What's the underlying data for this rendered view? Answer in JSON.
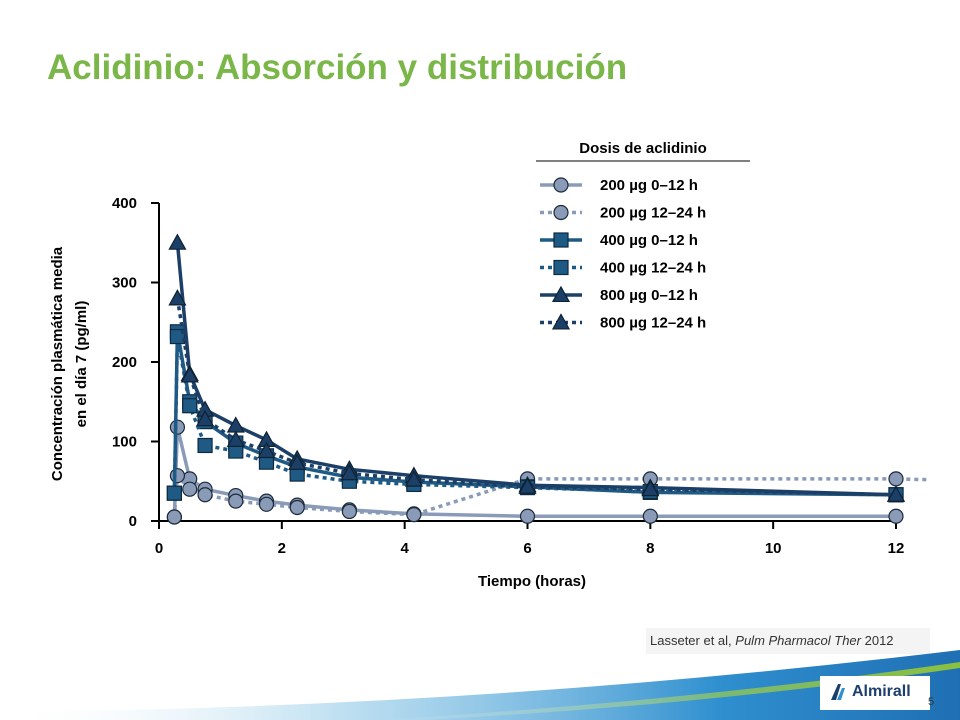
{
  "slide": {
    "title": "Aclidinio: Absorción y distribución",
    "citation_authors": "Lasseter et al, ",
    "citation_journal": "Pulm Pharmacol Ther",
    "citation_year": " 2012",
    "page_number": "5",
    "logo_text": "Almirall"
  },
  "colors": {
    "title": "#7ab648",
    "light_series": "#8a9bb8",
    "mid_series": "#1f5a85",
    "dark_series": "#1b3f66"
  },
  "chart_data": {
    "type": "line",
    "xlabel": "Tiempo (horas)",
    "ylabel_line1": "Concentración plasmática media",
    "ylabel_line2": "en el día 7 (pg/ml)",
    "xlim": [
      0,
      12
    ],
    "ylim": [
      0,
      400
    ],
    "x_ticks": [
      "0",
      "2",
      "4",
      "6",
      "8",
      "10",
      "12"
    ],
    "y_ticks": [
      "0",
      "100",
      "200",
      "300",
      "400"
    ],
    "legend_title": "Dosis de aclidinio",
    "legend_position": "top-right",
    "grid": false,
    "series": [
      {
        "name": "200 µg 0–12 h",
        "marker": "circle",
        "line": "solid",
        "color": "#8a9bb8",
        "x": [
          0.25,
          0.3,
          0.5,
          0.75,
          1.25,
          1.75,
          2.25,
          3.1,
          4.15,
          6.0,
          8.0,
          12.0
        ],
        "y": [
          5,
          118,
          53,
          40,
          32,
          25,
          20,
          14,
          9,
          6,
          6,
          6
        ]
      },
      {
        "name": "200 µg 12–24 h",
        "marker": "circle",
        "line": "dotted",
        "color": "#8a9bb8",
        "x": [
          0.25,
          0.3,
          0.5,
          0.75,
          1.25,
          1.75,
          2.25,
          3.1,
          4.15,
          6.0,
          8.0,
          12.0,
          12.5
        ],
        "y": [
          5,
          57,
          40,
          33,
          25,
          21,
          17,
          12,
          8,
          53,
          53,
          53,
          52
        ]
      },
      {
        "name": "400 µg 0–12 h",
        "marker": "square",
        "line": "solid",
        "color": "#1f5a85",
        "x": [
          0.25,
          0.3,
          0.5,
          0.75,
          1.25,
          1.75,
          2.25,
          3.1,
          4.15,
          6.0,
          8.0,
          12.0
        ],
        "y": [
          35,
          238,
          150,
          125,
          98,
          82,
          68,
          55,
          49,
          43,
          36,
          33
        ]
      },
      {
        "name": "400 µg 12–24 h",
        "marker": "square",
        "line": "dotted",
        "color": "#1f5a85",
        "x": [
          0.25,
          0.3,
          0.5,
          0.75,
          1.25,
          1.75,
          2.25,
          3.1,
          4.15,
          6.0,
          8.0,
          12.0
        ],
        "y": [
          35,
          232,
          145,
          95,
          88,
          74,
          59,
          50,
          46,
          42,
          37,
          33
        ]
      },
      {
        "name": "800 µg 0–12 h",
        "marker": "triangle",
        "line": "solid",
        "color": "#1b3f66",
        "x": [
          0.3,
          0.5,
          0.75,
          1.25,
          1.75,
          2.25,
          3.1,
          4.15,
          6.0,
          8.0,
          12.0
        ],
        "y": [
          350,
          185,
          140,
          120,
          102,
          78,
          65,
          57,
          45,
          42,
          33
        ]
      },
      {
        "name": "800 µg 12–24 h",
        "marker": "triangle",
        "line": "dotted",
        "color": "#1b3f66",
        "x": [
          0.3,
          0.5,
          0.75,
          1.25,
          1.75,
          2.25,
          3.1,
          4.15,
          6.0,
          8.0,
          12.0
        ],
        "y": [
          280,
          183,
          128,
          102,
          88,
          73,
          60,
          52,
          43,
          40,
          33
        ]
      }
    ]
  }
}
